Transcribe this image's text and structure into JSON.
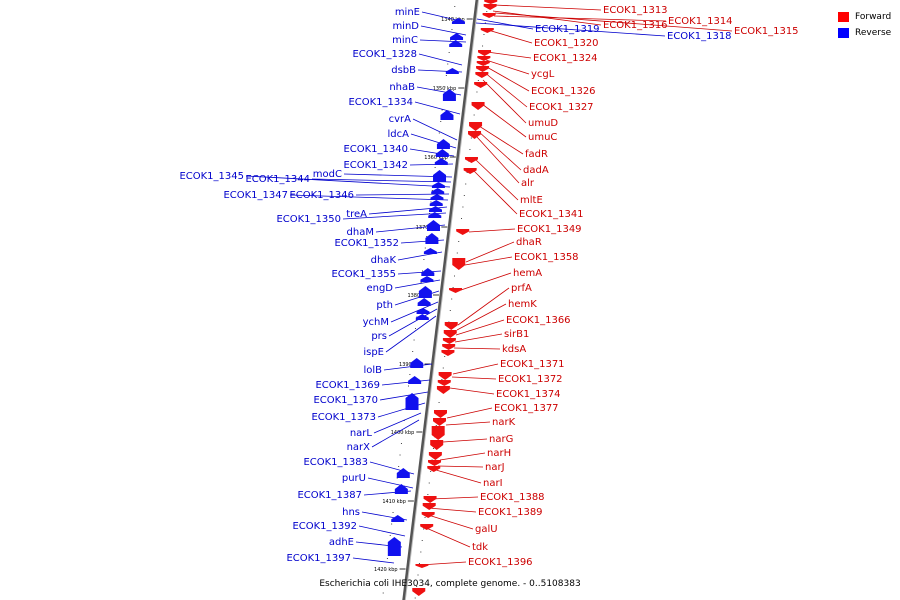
{
  "caption": "Escherichia coli IHE3034, complete genome. - 0..5108383",
  "legend": {
    "forward": {
      "label": "Forward",
      "color": "#ff0000"
    },
    "reverse": {
      "label": "Reverse",
      "color": "#0000ff"
    }
  },
  "colors": {
    "forward": "#ee1111",
    "reverse": "#1111ee",
    "backbone": "#888888"
  },
  "scale_ticks": [
    "1340 kbp",
    "1350 kbp",
    "1360 kbp",
    "1370 kbp",
    "1380 kbp",
    "1390 kbp",
    "1400 kbp",
    "1410 kbp",
    "1420 kbp"
  ],
  "reverse_genes": [
    "minE",
    "minD",
    "minC",
    "ECOK1_1328",
    "dsbB",
    "nhaB",
    "ECOK1_1334",
    "cvrA",
    "ldcA",
    "ECOK1_1340",
    "ECOK1_1342",
    "modC",
    "ECOK1_1344",
    "ECOK1_1345",
    "ECOK1_1346",
    "ECOK1_1347",
    "treA",
    "ECOK1_1350",
    "dhaM",
    "ECOK1_1352",
    "dhaK",
    "ECOK1_1355",
    "engD",
    "pth",
    "ychM",
    "prs",
    "ispE",
    "lolB",
    "ECOK1_1369",
    "ECOK1_1370",
    "ECOK1_1373",
    "narL",
    "narX",
    "ECOK1_1383",
    "purU",
    "ECOK1_1387",
    "hns",
    "ECOK1_1392",
    "adhE",
    "ECOK1_1397",
    "ECOK1_1319",
    "ECOK1_1318"
  ],
  "forward_genes": [
    "ECOK1_1313",
    "ECOK1_1316",
    "ECOK1_1314",
    "ECOK1_1315",
    "ECOK1_1320",
    "ECOK1_1324",
    "ycgL",
    "ECOK1_1326",
    "ECOK1_1327",
    "umuD",
    "umuC",
    "fadR",
    "dadA",
    "alr",
    "mltE",
    "ECOK1_1341",
    "ECOK1_1349",
    "dhaR",
    "ECOK1_1358",
    "hemA",
    "prfA",
    "hemK",
    "ECOK1_1366",
    "sirB1",
    "kdsA",
    "ECOK1_1371",
    "ECOK1_1372",
    "ECOK1_1374",
    "ECOK1_1377",
    "narK",
    "narG",
    "narH",
    "narJ",
    "narI",
    "ECOK1_1388",
    "ECOK1_1389",
    "galU",
    "tdk",
    "ECOK1_1396"
  ]
}
